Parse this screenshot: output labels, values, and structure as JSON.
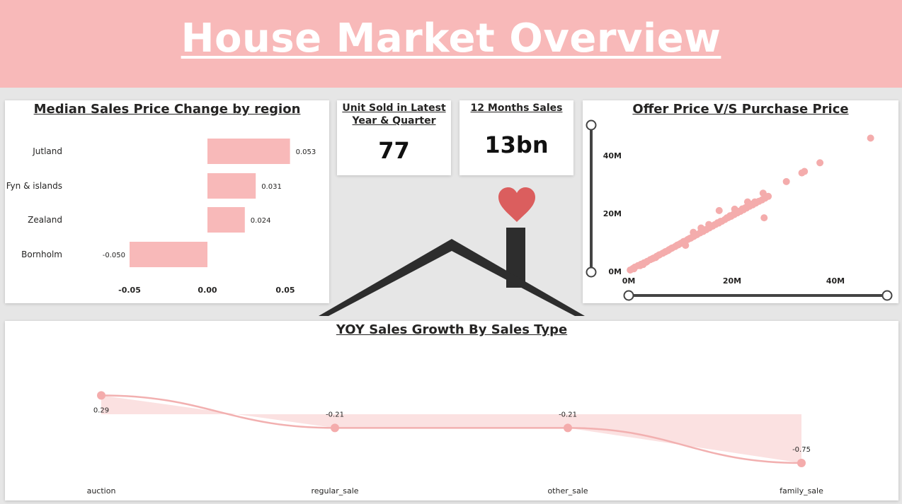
{
  "header": {
    "title": "House Market Overview"
  },
  "colors": {
    "header_bg": "#f8b9b9",
    "bar": "#f8b9b9",
    "point": "#f4acac",
    "line": "#f2b0b0",
    "area": "#fbe1e1",
    "house": "#2d2d2d",
    "heart": "#db5e5e"
  },
  "icons": {
    "house": "house-icon",
    "heart": "heart-icon"
  },
  "cards": {
    "units": {
      "title_line1": "Unit Sold in Latest",
      "title_line2": "Year & Quarter",
      "value": "77"
    },
    "sales": {
      "title": "12 Months Sales",
      "value": "13bn"
    }
  },
  "chart_data": [
    {
      "type": "bar",
      "orientation": "horizontal",
      "title": "Median Sales Price Change by region",
      "categories": [
        "Jutland",
        "Fyn & islands",
        "Zealand",
        "Bornholm"
      ],
      "values": [
        0.053,
        0.031,
        0.024,
        -0.05
      ],
      "value_labels": [
        "0.053",
        "0.031",
        "0.024",
        "-0.050"
      ],
      "xlim": [
        -0.05,
        0.05
      ],
      "xticks": [
        -0.05,
        0.0,
        0.05
      ],
      "xtick_labels": [
        "-0.05",
        "0.00",
        "0.05"
      ],
      "grid": false
    },
    {
      "type": "scatter",
      "title": "Offer Price V/S Purchase Price",
      "xticks": [
        0,
        20,
        40
      ],
      "xtick_labels": [
        "0M",
        "20M",
        "40M"
      ],
      "yticks": [
        0,
        20,
        40
      ],
      "ytick_labels": [
        "0M",
        "20M",
        "40M"
      ],
      "xlim": [
        0,
        48
      ],
      "ylim": [
        0,
        48
      ],
      "x": [
        0.3,
        0.8,
        1.2,
        1.8,
        2.4,
        3.0,
        3.6,
        4.2,
        4.8,
        5.4,
        6.0,
        6.6,
        7.2,
        7.8,
        8.4,
        9.0,
        9.6,
        10.2,
        10.8,
        11.4,
        12.0,
        12.6,
        13.2,
        13.8,
        14.4,
        15.0,
        15.6,
        16.2,
        16.8,
        17.4,
        18.0,
        18.6,
        19.2,
        19.8,
        20.4,
        21.0,
        21.6,
        22.2,
        22.8,
        23.4,
        24.0,
        24.6,
        25.2,
        25.8,
        26.4,
        27.0,
        1.0,
        2.2,
        3.4,
        4.6,
        5.8,
        7.0,
        8.2,
        9.4,
        10.6,
        11.8,
        13.0,
        14.2,
        15.4,
        16.6,
        17.8,
        19.0,
        20.2,
        21.4,
        22.6,
        23.8,
        2.8,
        5.2,
        7.6,
        10.0,
        12.4,
        14.8,
        17.2,
        19.6,
        22.0,
        24.4,
        11.0,
        12.5,
        14.0,
        15.5,
        17.5,
        20.5,
        23.0,
        26.0,
        26.2,
        30.5,
        33.5,
        34.0,
        37.0,
        46.8
      ],
      "y": [
        0.5,
        1.0,
        1.5,
        2.0,
        2.5,
        3.0,
        3.5,
        4.1,
        4.6,
        5.2,
        5.8,
        6.3,
        6.9,
        7.5,
        8.1,
        8.6,
        9.2,
        9.8,
        10.4,
        11.0,
        11.5,
        12.1,
        12.7,
        13.3,
        13.8,
        14.4,
        15.0,
        15.6,
        16.2,
        16.7,
        17.3,
        17.9,
        18.5,
        19.0,
        19.6,
        20.2,
        20.7,
        21.3,
        21.9,
        22.5,
        23.0,
        23.6,
        24.2,
        24.7,
        25.3,
        25.9,
        0.9,
        2.0,
        3.2,
        4.4,
        5.6,
        6.7,
        7.9,
        9.1,
        10.3,
        11.4,
        12.6,
        13.8,
        15.0,
        16.1,
        17.3,
        18.5,
        19.6,
        20.8,
        22.0,
        23.2,
        2.4,
        4.8,
        7.2,
        9.6,
        12.0,
        14.4,
        16.8,
        19.2,
        21.6,
        24.0,
        9.0,
        13.5,
        15.0,
        16.2,
        21.0,
        21.5,
        24.0,
        27.0,
        18.5,
        31.0,
        34.0,
        34.5,
        37.5,
        46.0
      ],
      "x_slider": true,
      "y_slider": true
    },
    {
      "type": "area",
      "title": "YOY Sales Growth By Sales Type",
      "categories": [
        "auction",
        "regular_sale",
        "other_sale",
        "family_sale"
      ],
      "values": [
        0.29,
        -0.21,
        -0.21,
        -0.75
      ],
      "value_labels": [
        "0.29",
        "-0.21",
        "-0.21",
        "-0.75"
      ],
      "smooth": true
    }
  ]
}
